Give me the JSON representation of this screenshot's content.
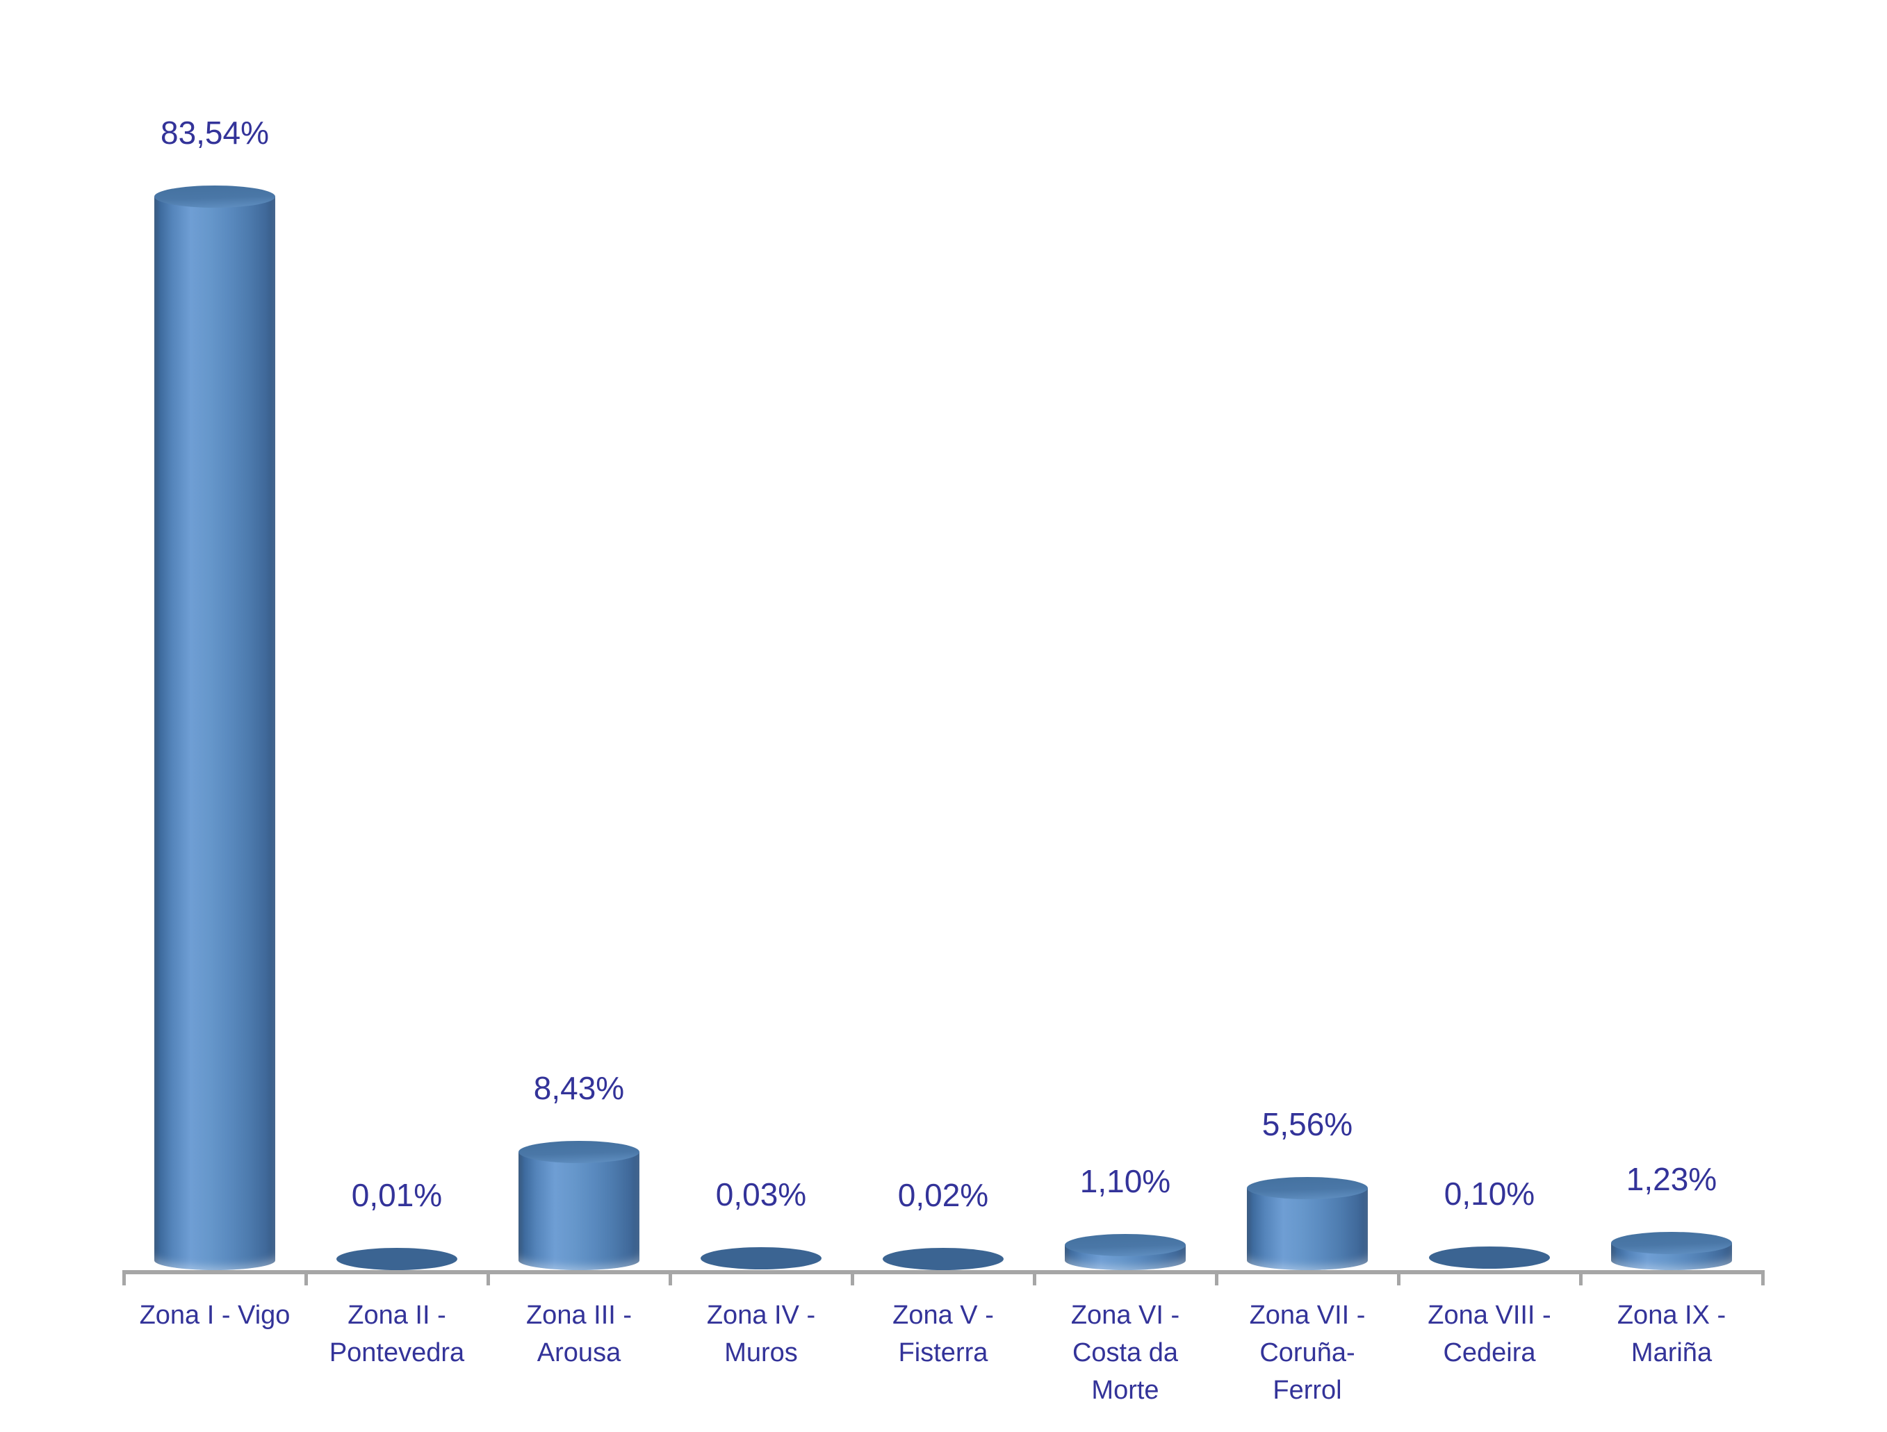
{
  "chart_data": {
    "type": "bar",
    "subtype": "3d-cylinder",
    "title": "",
    "xlabel": "",
    "ylabel": "",
    "legend": "none",
    "grid": false,
    "background": "#ffffff",
    "unit": "%",
    "categories": [
      "Zona I - Vigo",
      "Zona II - Pontevedra",
      "Zona III - Arousa",
      "Zona IV - Muros",
      "Zona V - Fisterra",
      "Zona VI - Costa da Morte",
      "Zona VII - Coruña-Ferrol",
      "Zona VIII - Cedeira",
      "Zona IX - Mariña"
    ],
    "category_label_lines": [
      [
        "Zona I - Vigo"
      ],
      [
        "Zona II -",
        "Pontevedra"
      ],
      [
        "Zona III -",
        "Arousa"
      ],
      [
        "Zona IV -",
        "Muros"
      ],
      [
        "Zona V -",
        "Fisterra"
      ],
      [
        "Zona VI -",
        "Costa da",
        "Morte"
      ],
      [
        "Zona VII -",
        "Coruña-",
        "Ferrol"
      ],
      [
        "Zona VIII -",
        "Cedeira"
      ],
      [
        "Zona IX -",
        "Mariña"
      ]
    ],
    "values": [
      83.54,
      0.01,
      8.43,
      0.03,
      0.02,
      1.1,
      5.56,
      0.1,
      1.23
    ],
    "value_labels": [
      "83,54%",
      "0,01%",
      "8,43%",
      "0,03%",
      "0,02%",
      "1,10%",
      "5,56%",
      "0,10%",
      "1,23%"
    ],
    "ylim": [
      0,
      90
    ],
    "colors": {
      "bar_fill": "#4F81BD",
      "bar_highlight": "#6f9ed4",
      "bar_shadow": "#2d4f77",
      "bar_top_face": "#44719f",
      "flat_ellipse": "#3b6492",
      "label_text": "#333399",
      "axis_line": "#a6a6a6"
    }
  }
}
